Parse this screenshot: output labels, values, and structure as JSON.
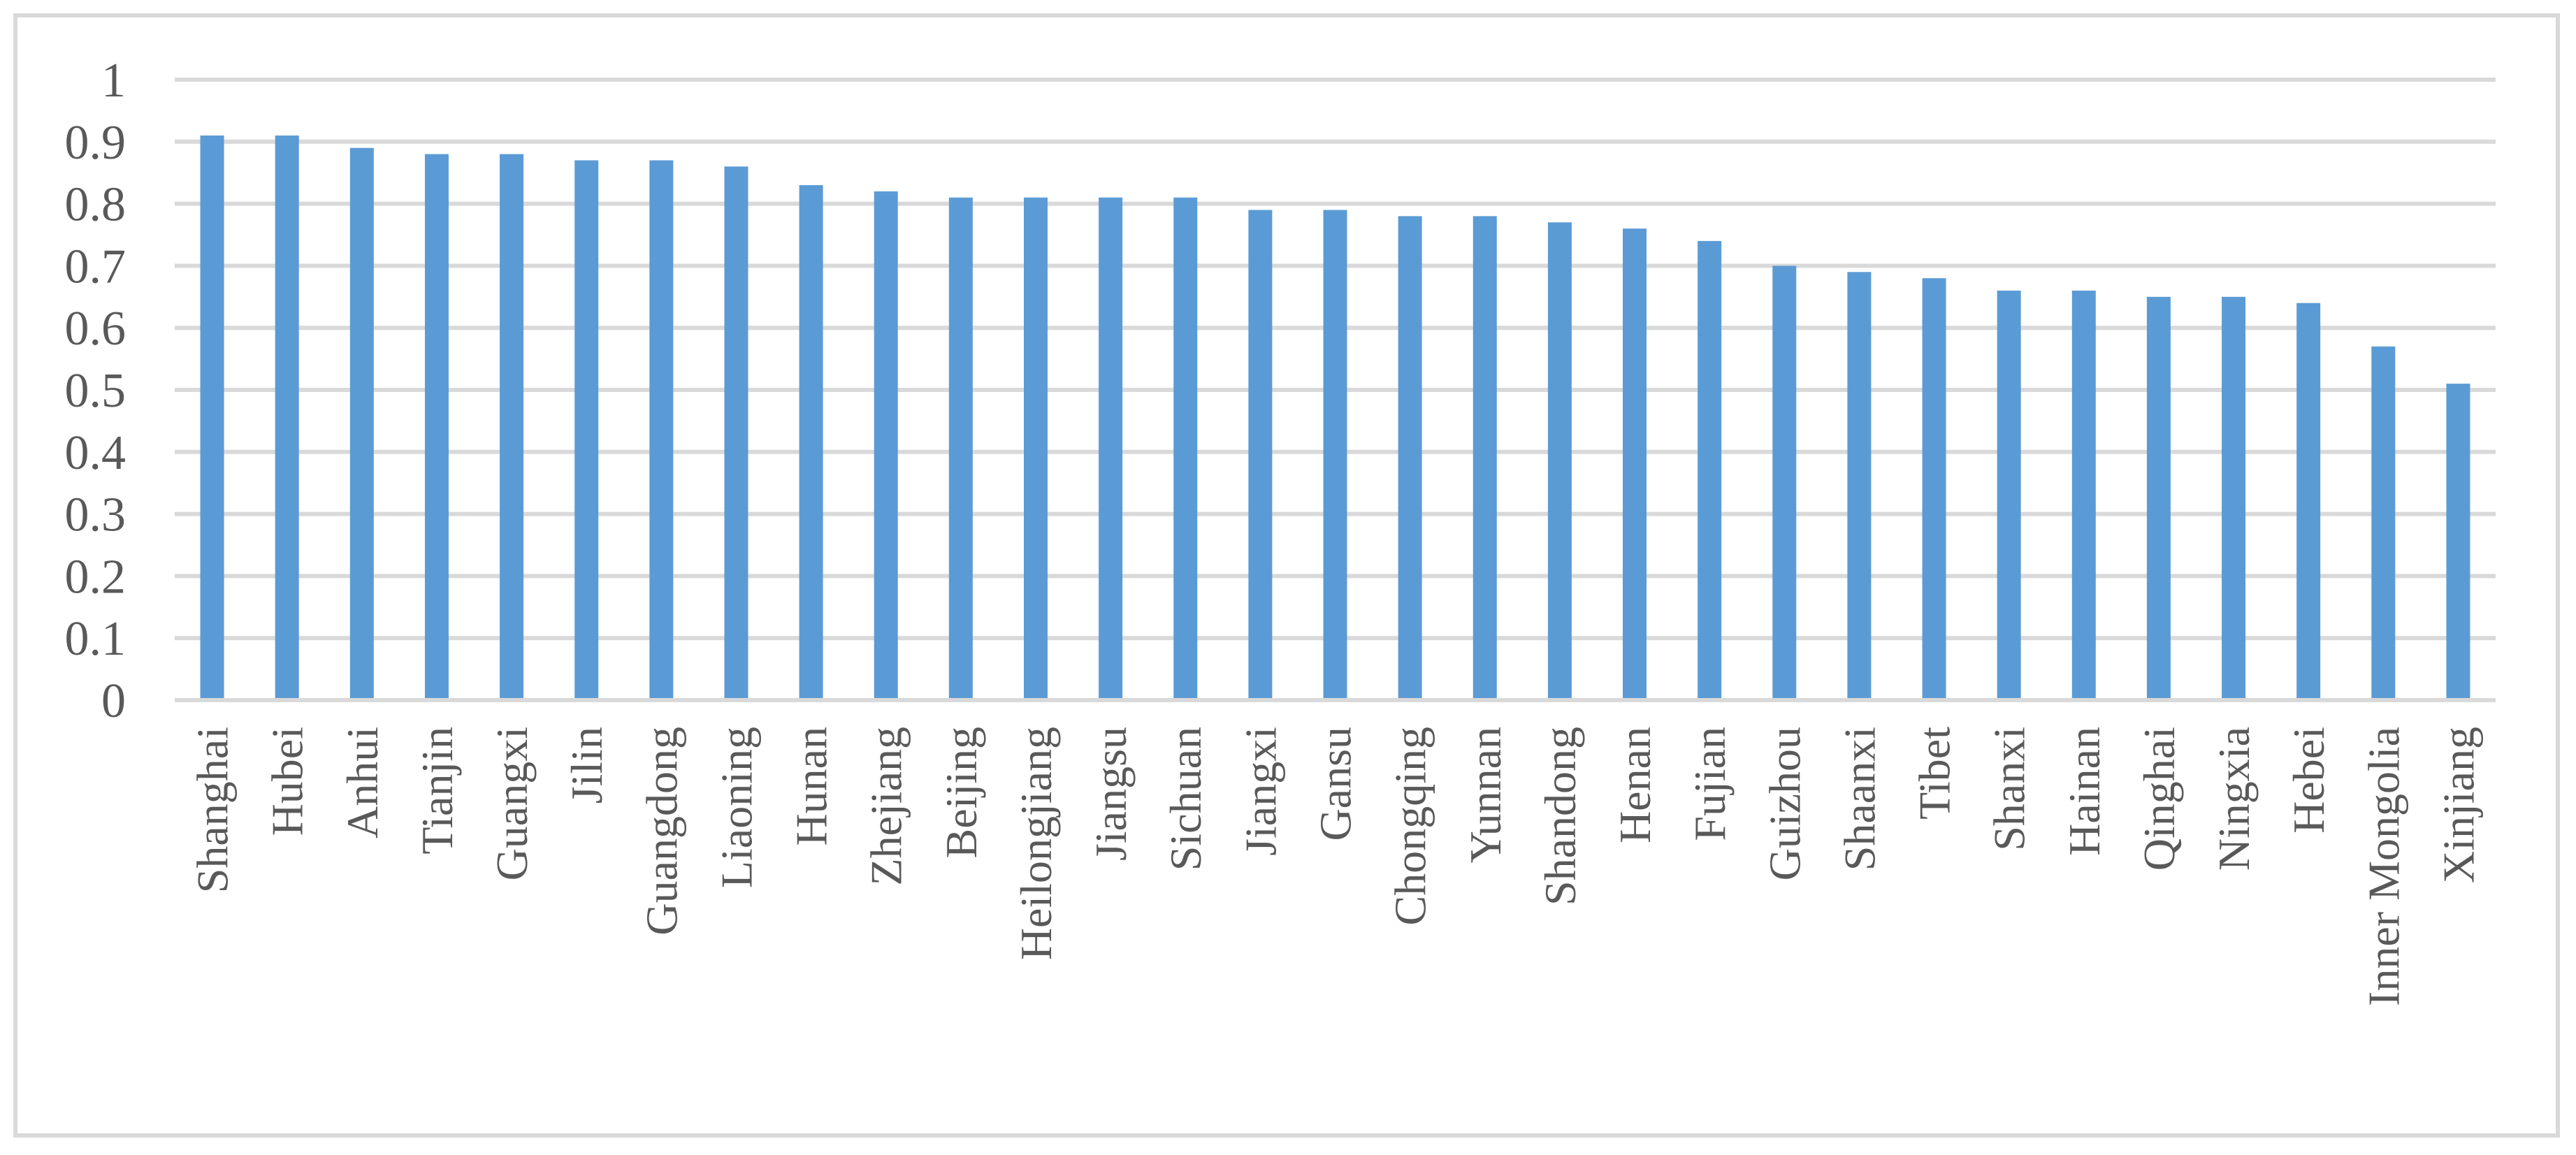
{
  "chart_data": {
    "type": "bar",
    "title": "",
    "xlabel": "",
    "ylabel": "",
    "ylim": [
      0,
      1
    ],
    "yticks": [
      "0",
      "0.1",
      "0.2",
      "0.3",
      "0.4",
      "0.5",
      "0.6",
      "0.7",
      "0.8",
      "0.9",
      "1"
    ],
    "grid": true,
    "legend": "none",
    "bar_color": "#5B9BD5",
    "grid_color": "#D9D9D9",
    "categories": [
      "Shanghai",
      "Hubei",
      "Anhui",
      "Tianjin",
      "Guangxi",
      "Jilin",
      "Guangdong",
      "Liaoning",
      "Hunan",
      "Zhejiang",
      "Beijing",
      "Heilongjiang",
      "Jiangsu",
      "Sichuan",
      "Jiangxi",
      "Gansu",
      "Chongqing",
      "Yunnan",
      "Shandong",
      "Henan",
      "Fujian",
      "Guizhou",
      "Shaanxi",
      "Tibet",
      "Shanxi",
      "Hainan",
      "Qinghai",
      "Ningxia",
      "Hebei",
      "Inner Mongolia",
      "Xinjiang"
    ],
    "values": [
      0.91,
      0.91,
      0.89,
      0.88,
      0.88,
      0.87,
      0.87,
      0.86,
      0.83,
      0.82,
      0.81,
      0.81,
      0.81,
      0.81,
      0.79,
      0.79,
      0.78,
      0.78,
      0.77,
      0.76,
      0.74,
      0.7,
      0.69,
      0.68,
      0.66,
      0.66,
      0.65,
      0.65,
      0.64,
      0.57,
      0.51
    ]
  }
}
